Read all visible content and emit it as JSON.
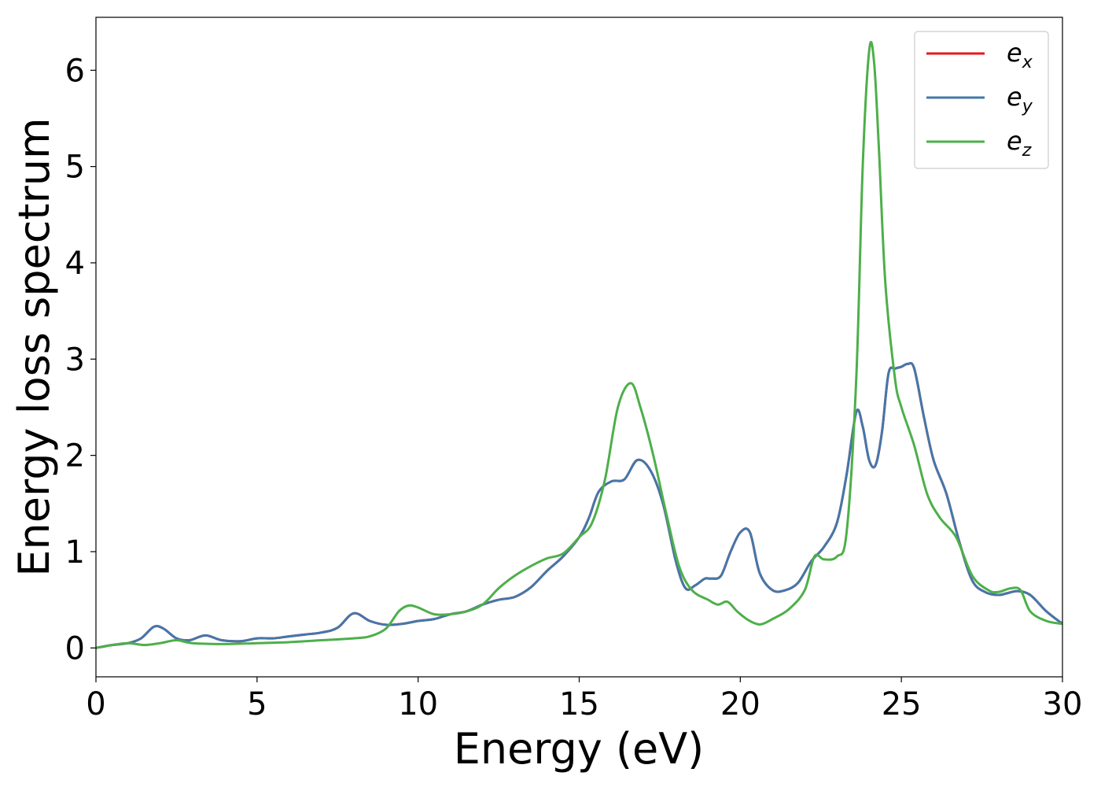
{
  "chart_data": {
    "type": "line",
    "title": "",
    "xlabel": "Energy (eV)",
    "ylabel": "Energy loss spectrum",
    "xlim": [
      0,
      30
    ],
    "ylim": [
      -0.3,
      6.55
    ],
    "xticks": [
      0,
      5,
      10,
      15,
      20,
      25,
      30
    ],
    "yticks": [
      0,
      1,
      2,
      3,
      4,
      5,
      6
    ],
    "grid": false,
    "legend_position": "top-right",
    "series": [
      {
        "name": "e_x",
        "legend_base": "e",
        "legend_sub": "x",
        "color": "#e41a1c",
        "x": [
          0,
          0.5,
          1.0,
          1.4,
          1.8,
          2.1,
          2.5,
          2.9,
          3.4,
          3.9,
          4.5,
          5.0,
          5.5,
          6.0,
          6.5,
          7.0,
          7.5,
          8.0,
          8.5,
          9.0,
          9.5,
          10.0,
          10.5,
          11.0,
          11.5,
          12.0,
          12.5,
          13.0,
          13.5,
          14.0,
          14.5,
          15.0,
          15.3,
          15.6,
          16.0,
          16.4,
          16.8,
          17.2,
          17.6,
          18.0,
          18.3,
          18.6,
          18.9,
          19.1,
          19.4,
          19.7,
          20.0,
          20.3,
          20.6,
          21.0,
          21.4,
          21.8,
          22.2,
          22.6,
          23.0,
          23.3,
          23.6,
          23.8,
          24.0,
          24.2,
          24.4,
          24.6,
          24.8,
          25.0,
          25.2,
          25.4,
          25.7,
          26.0,
          26.4,
          26.8,
          27.2,
          27.6,
          28.0,
          28.3,
          28.6,
          29.0,
          29.5,
          30.0
        ],
        "y": [
          0.0,
          0.03,
          0.05,
          0.1,
          0.22,
          0.2,
          0.1,
          0.08,
          0.13,
          0.08,
          0.07,
          0.1,
          0.1,
          0.12,
          0.14,
          0.16,
          0.21,
          0.36,
          0.28,
          0.24,
          0.25,
          0.28,
          0.3,
          0.35,
          0.38,
          0.45,
          0.5,
          0.53,
          0.63,
          0.8,
          0.95,
          1.15,
          1.35,
          1.62,
          1.73,
          1.75,
          1.95,
          1.85,
          1.5,
          0.9,
          0.62,
          0.65,
          0.72,
          0.72,
          0.75,
          1.0,
          1.2,
          1.2,
          0.78,
          0.6,
          0.6,
          0.68,
          0.9,
          1.05,
          1.3,
          1.8,
          2.45,
          2.3,
          1.95,
          1.9,
          2.25,
          2.85,
          2.9,
          2.92,
          2.95,
          2.9,
          2.4,
          1.95,
          1.6,
          1.1,
          0.7,
          0.58,
          0.55,
          0.57,
          0.59,
          0.55,
          0.38,
          0.25
        ]
      },
      {
        "name": "e_y",
        "legend_base": "e",
        "legend_sub": "y",
        "color": "#4477aa",
        "x": [
          0,
          0.5,
          1.0,
          1.4,
          1.8,
          2.1,
          2.5,
          2.9,
          3.4,
          3.9,
          4.5,
          5.0,
          5.5,
          6.0,
          6.5,
          7.0,
          7.5,
          8.0,
          8.5,
          9.0,
          9.5,
          10.0,
          10.5,
          11.0,
          11.5,
          12.0,
          12.5,
          13.0,
          13.5,
          14.0,
          14.5,
          15.0,
          15.3,
          15.6,
          16.0,
          16.4,
          16.8,
          17.2,
          17.6,
          18.0,
          18.3,
          18.6,
          18.9,
          19.1,
          19.4,
          19.7,
          20.0,
          20.3,
          20.6,
          21.0,
          21.4,
          21.8,
          22.2,
          22.6,
          23.0,
          23.3,
          23.6,
          23.8,
          24.0,
          24.2,
          24.4,
          24.6,
          24.8,
          25.0,
          25.2,
          25.4,
          25.7,
          26.0,
          26.4,
          26.8,
          27.2,
          27.6,
          28.0,
          28.3,
          28.6,
          29.0,
          29.5,
          30.0
        ],
        "y": [
          0.0,
          0.03,
          0.05,
          0.1,
          0.22,
          0.2,
          0.1,
          0.08,
          0.13,
          0.08,
          0.07,
          0.1,
          0.1,
          0.12,
          0.14,
          0.16,
          0.21,
          0.36,
          0.28,
          0.24,
          0.25,
          0.28,
          0.3,
          0.35,
          0.38,
          0.45,
          0.5,
          0.53,
          0.63,
          0.8,
          0.95,
          1.15,
          1.35,
          1.62,
          1.73,
          1.75,
          1.95,
          1.85,
          1.5,
          0.9,
          0.62,
          0.65,
          0.72,
          0.72,
          0.75,
          1.0,
          1.2,
          1.2,
          0.78,
          0.6,
          0.6,
          0.68,
          0.9,
          1.05,
          1.3,
          1.8,
          2.45,
          2.3,
          1.95,
          1.9,
          2.25,
          2.85,
          2.9,
          2.92,
          2.95,
          2.9,
          2.4,
          1.95,
          1.6,
          1.1,
          0.7,
          0.58,
          0.55,
          0.57,
          0.59,
          0.55,
          0.38,
          0.25
        ]
      },
      {
        "name": "e_z",
        "legend_base": "e",
        "legend_sub": "z",
        "color": "#4daf4a",
        "x": [
          0,
          0.5,
          1.0,
          1.5,
          2.0,
          2.5,
          3.0,
          4.0,
          5.0,
          6.0,
          7.0,
          8.0,
          8.5,
          9.0,
          9.4,
          9.7,
          10.0,
          10.5,
          11.0,
          11.5,
          12.0,
          12.5,
          13.0,
          13.5,
          14.0,
          14.5,
          15.0,
          15.4,
          15.8,
          16.2,
          16.6,
          16.9,
          17.3,
          17.7,
          18.1,
          18.5,
          19.0,
          19.3,
          19.6,
          19.9,
          20.2,
          20.5,
          20.7,
          21.0,
          21.5,
          22.0,
          22.3,
          22.6,
          23.0,
          23.3,
          23.6,
          23.8,
          24.0,
          24.15,
          24.3,
          24.5,
          24.8,
          25.0,
          25.4,
          25.8,
          26.2,
          26.7,
          27.2,
          27.7,
          28.0,
          28.4,
          28.7,
          29.0,
          29.5,
          30.0
        ],
        "y": [
          0.0,
          0.03,
          0.05,
          0.03,
          0.05,
          0.08,
          0.05,
          0.04,
          0.05,
          0.06,
          0.08,
          0.1,
          0.12,
          0.2,
          0.38,
          0.44,
          0.42,
          0.35,
          0.35,
          0.38,
          0.45,
          0.62,
          0.75,
          0.85,
          0.93,
          0.98,
          1.15,
          1.3,
          1.75,
          2.5,
          2.75,
          2.5,
          2.0,
          1.4,
          0.85,
          0.6,
          0.5,
          0.45,
          0.48,
          0.38,
          0.3,
          0.25,
          0.25,
          0.3,
          0.4,
          0.6,
          0.95,
          0.92,
          0.95,
          1.2,
          2.8,
          5.0,
          6.2,
          6.1,
          5.2,
          3.8,
          2.8,
          2.5,
          2.1,
          1.6,
          1.35,
          1.15,
          0.75,
          0.6,
          0.58,
          0.62,
          0.6,
          0.38,
          0.28,
          0.25
        ]
      }
    ]
  }
}
